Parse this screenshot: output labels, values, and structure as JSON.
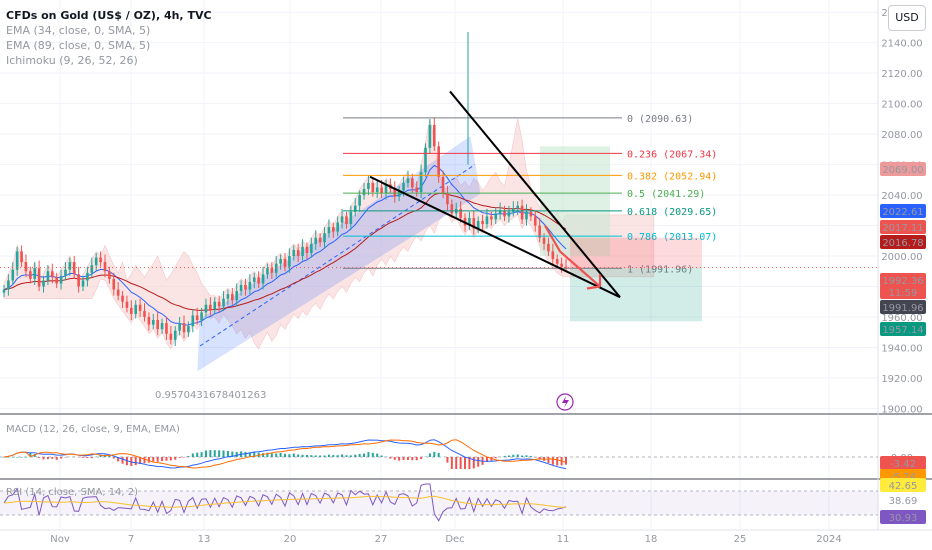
{
  "header": {
    "symbol": "CFDs on Gold (US$ / OZ), 4h, TVC",
    "indicators": [
      "EMA (34, close, 0, SMA, 5)",
      "EMA (89, close, 0, SMA, 5)",
      "Ichimoku (9, 26, 52, 26)"
    ],
    "currency_button": "USD"
  },
  "colors": {
    "up": "#26a69a",
    "down": "#ef5350",
    "ema34": "#2962ff",
    "ema89": "#b71c1c",
    "channel": "#2962ff",
    "cloud": "#f6cfcf",
    "cloud_green": "#c9e8d3",
    "grid": "#f0f3fa",
    "axis_text": "#9598a1"
  },
  "chart_data": [
    {
      "type": "candlestick",
      "title": "CFDs on Gold (US$ / OZ), 4h, TVC",
      "x_ticks": [
        "Nov",
        "7",
        "13",
        "20",
        "27",
        "Dec",
        "11",
        "18",
        "25",
        "2024"
      ],
      "y_ticks": [
        1900.0,
        1920.0,
        1940.0,
        1960.0,
        1980.0,
        2000.0,
        2020.0,
        2040.0,
        2060.0,
        2080.0,
        2100.0,
        2120.0,
        2140.0,
        2160.0
      ],
      "ylim": [
        1897,
        2168
      ],
      "price_tags": [
        {
          "value": "2069.00",
          "color": "#ef9a9a",
          "text_color": "#131722"
        },
        {
          "value": "2022.61",
          "color": "#2962ff",
          "text_color": "#ffffff"
        },
        {
          "value": "2017.11",
          "color": "#ef5350",
          "text_color": "#ffffff"
        },
        {
          "value": "2016.78",
          "color": "#b71c1c",
          "text_color": "#ffffff"
        },
        {
          "value": "1992.36",
          "color": "#ef5350",
          "text_color": "#ffffff"
        },
        {
          "value": "11:59",
          "color": "#ef5350",
          "text_color": "#ffffff"
        },
        {
          "value": "1991.96",
          "color": "#434651",
          "text_color": "#ffffff"
        },
        {
          "value": "1957.14",
          "color": "#089981",
          "text_color": "#ffffff"
        }
      ],
      "fibonacci": [
        {
          "level": "0 (2090.63)",
          "price": 2090.63,
          "color": "#787b86"
        },
        {
          "level": "0.236 (2067.34)",
          "price": 2067.34,
          "color": "#f23645"
        },
        {
          "level": "0.382 (2052.94)",
          "price": 2052.94,
          "color": "#ff9800"
        },
        {
          "level": "0.5 (2041.29)",
          "price": 2041.29,
          "color": "#4caf50"
        },
        {
          "level": "0.618 (2029.65)",
          "price": 2029.65,
          "color": "#089981"
        },
        {
          "level": "0.786 (2013.07)",
          "price": 2013.07,
          "color": "#00bcd4"
        },
        {
          "level": "1 (1991.96)",
          "price": 1991.96,
          "color": "#787b86"
        }
      ],
      "channel_label": "0.9570431678401263",
      "close_series": [
        1978,
        1984,
        1991,
        2003,
        1996,
        1990,
        1985,
        1992,
        1980,
        1984,
        1990,
        1986,
        1982,
        1987,
        1991,
        1996,
        1988,
        1980,
        1984,
        1989,
        1994,
        1999,
        1996,
        1990,
        1985,
        1978,
        1974,
        1970,
        1966,
        1962,
        1968,
        1964,
        1960,
        1955,
        1958,
        1952,
        1956,
        1949,
        1945,
        1951,
        1956,
        1950,
        1954,
        1961,
        1958,
        1963,
        1968,
        1965,
        1970,
        1967,
        1972,
        1975,
        1971,
        1977,
        1981,
        1978,
        1983,
        1986,
        1982,
        1988,
        1992,
        1989,
        1995,
        1998,
        1993,
        2000,
        2004,
        2000,
        2006,
        2002,
        2008,
        2012,
        2009,
        2015,
        2019,
        2016,
        2022,
        2026,
        2021,
        2029,
        2033,
        2040,
        2044,
        2048,
        2042,
        2045,
        2041,
        2047,
        2044,
        2039,
        2043,
        2048,
        2051,
        2045,
        2042,
        2055,
        2071,
        2086,
        2072,
        2052,
        2041,
        2034,
        2028,
        2031,
        2025,
        2020,
        2025,
        2018,
        2023,
        2021,
        2026,
        2024,
        2028,
        2030,
        2026,
        2029,
        2031,
        2033,
        2024,
        2029,
        2026,
        2020,
        2012,
        2008,
        2003,
        1998,
        1995,
        1993,
        1992.36
      ]
    },
    {
      "type": "line",
      "title": "MACD (12, 26, close, 9, EMA, EMA)",
      "y_ticks": [
        "0.00"
      ],
      "price_tags": [
        {
          "value": "-3.42",
          "color": "#ef5350",
          "text_color": "#ffffff"
        },
        {
          "value": "-5.74",
          "color": "#ff9800",
          "text_color": "#131722"
        }
      ]
    },
    {
      "type": "line",
      "title": "RSI (14, close, SMA, 14, 2)",
      "price_tags": [
        {
          "value": "42.65",
          "color": "#ffeb3b",
          "text_color": "#131722"
        },
        {
          "value": "38.69",
          "color": "#ffffff",
          "text_color": "#131722"
        },
        {
          "value": "30.93",
          "color": "#7e57c2",
          "text_color": "#ffffff"
        }
      ]
    }
  ]
}
